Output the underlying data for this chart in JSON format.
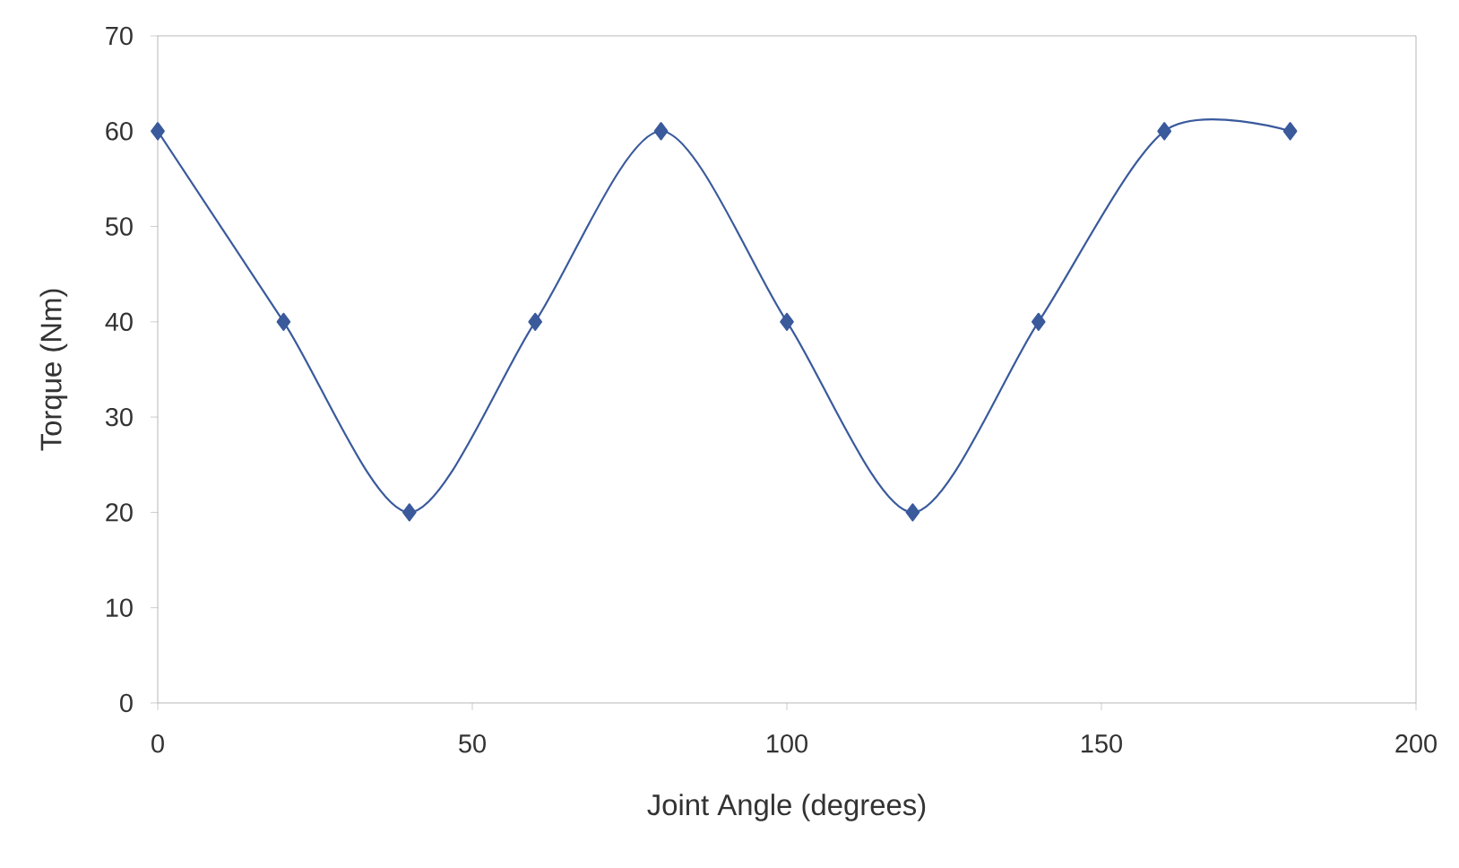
{
  "chart_data": {
    "type": "line",
    "xlabel": "Joint Angle (degrees)",
    "ylabel": "Torque (Nm)",
    "x": [
      0,
      20,
      40,
      60,
      80,
      100,
      120,
      140,
      160,
      180
    ],
    "series": [
      {
        "color": "#3a5a9c",
        "values": [
          60,
          40,
          20,
          40,
          60,
          40,
          20,
          40,
          60,
          60
        ]
      }
    ],
    "xlim": [
      0,
      200
    ],
    "ylim": [
      0,
      70
    ],
    "xticks": [
      0,
      50,
      100,
      150,
      200
    ],
    "yticks": [
      0,
      10,
      20,
      30,
      40,
      50,
      60,
      70
    ],
    "marker": "diamond",
    "line_style": "solid"
  }
}
